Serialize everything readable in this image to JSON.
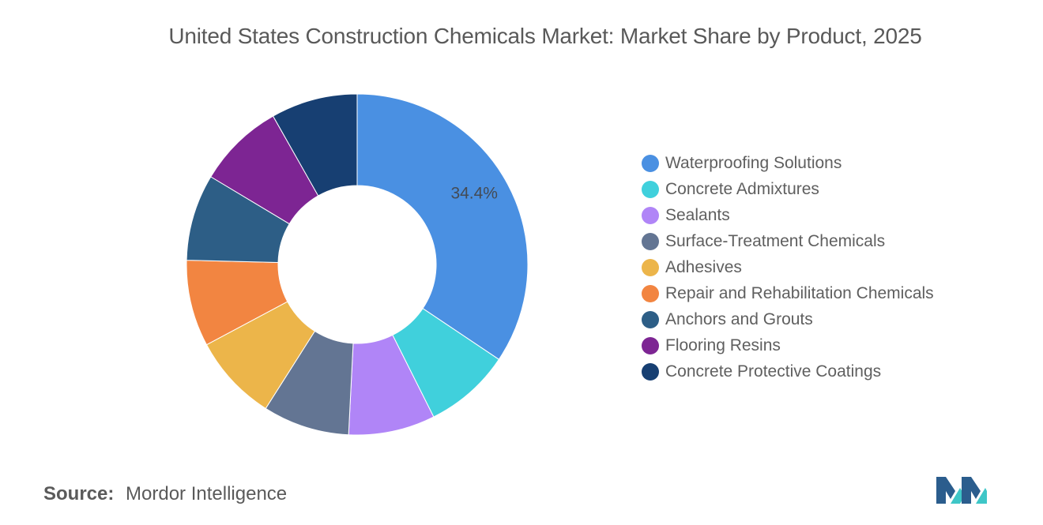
{
  "header": {
    "title": "United States Construction Chemicals Market: Market Share by Product, 2025"
  },
  "chart_data": {
    "type": "pie",
    "variant": "donut",
    "title": "United States Construction Chemicals Market: Market Share by Product, 2025",
    "legend_position": "right",
    "start_angle_deg": 90,
    "direction": "clockwise",
    "series": [
      {
        "name": "Waterproofing Solutions",
        "value": 34.4,
        "color": "#4a90e2",
        "label": "34.4%"
      },
      {
        "name": "Concrete Admixtures",
        "value": 8.2,
        "color": "#40d0dc",
        "label": ""
      },
      {
        "name": "Sealants",
        "value": 8.2,
        "color": "#b085f7",
        "label": ""
      },
      {
        "name": "Surface-Treatment Chemicals",
        "value": 8.2,
        "color": "#637593",
        "label": ""
      },
      {
        "name": "Adhesives",
        "value": 8.2,
        "color": "#ecb54a",
        "label": ""
      },
      {
        "name": "Repair and Rehabilitation Chemicals",
        "value": 8.2,
        "color": "#f28541",
        "label": ""
      },
      {
        "name": "Anchors and Grouts",
        "value": 8.2,
        "color": "#2d5e86",
        "label": ""
      },
      {
        "name": "Flooring Resins",
        "value": 8.2,
        "color": "#7d2593",
        "label": ""
      },
      {
        "name": "Concrete Protective Coatings",
        "value": 8.2,
        "color": "#173f72",
        "label": ""
      }
    ]
  },
  "footer": {
    "source_label": "Source:",
    "source_value": "Mordor Intelligence"
  },
  "logo": {
    "icon": "mordor-intelligence-logo",
    "colors": [
      "#2b5d8d",
      "#3ec6c7"
    ]
  }
}
